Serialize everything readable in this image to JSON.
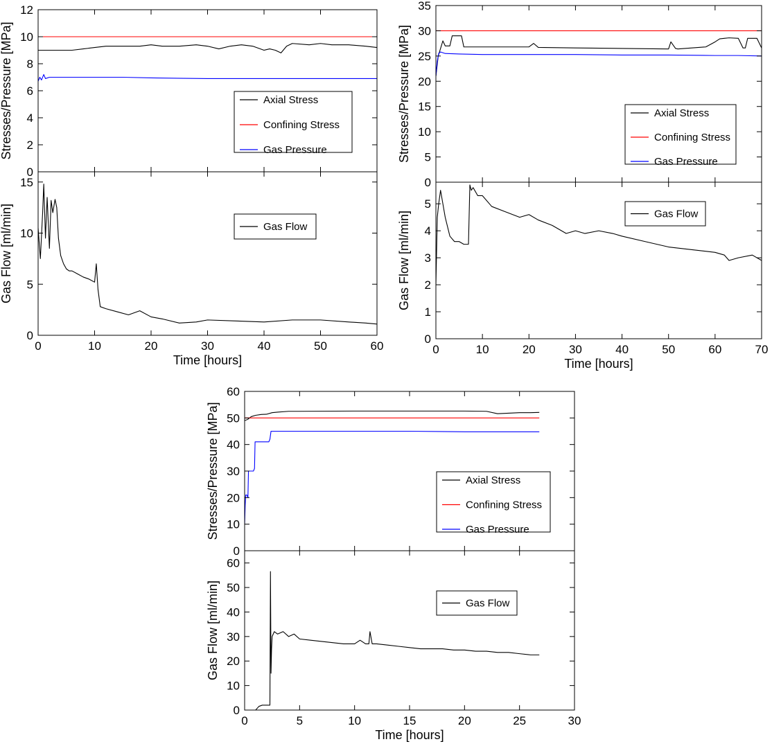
{
  "chart_data": [
    {
      "type": "line",
      "panel": "top-left-upper",
      "xlim": [
        0,
        60
      ],
      "ylim": [
        0,
        12
      ],
      "xticks": [
        0,
        10,
        20,
        30,
        40,
        50,
        60
      ],
      "yticks": [
        0,
        2,
        4,
        6,
        8,
        10,
        12
      ],
      "xlabel": "",
      "ylabel": "Stresses/Pressure [MPa]",
      "legend": "center-right",
      "series": [
        {
          "name": "Axial Stress",
          "color": "#000000",
          "x": [
            0,
            2,
            4,
            6,
            8,
            10,
            12,
            15,
            18,
            20,
            22,
            25,
            28,
            30,
            32,
            34,
            36,
            38,
            40,
            41,
            42,
            43,
            44,
            45,
            48,
            50,
            52,
            55,
            58,
            60
          ],
          "y": [
            9.0,
            9.0,
            9.0,
            9.0,
            9.1,
            9.2,
            9.3,
            9.3,
            9.3,
            9.4,
            9.3,
            9.3,
            9.4,
            9.3,
            9.1,
            9.3,
            9.4,
            9.3,
            9.0,
            9.1,
            9.0,
            8.8,
            9.3,
            9.5,
            9.4,
            9.5,
            9.4,
            9.4,
            9.3,
            9.2
          ]
        },
        {
          "name": "Confining Stress",
          "color": "#ff0000",
          "x": [
            0,
            60
          ],
          "y": [
            10.0,
            10.0
          ]
        },
        {
          "name": "Gas Pressure",
          "color": "#0000ff",
          "x": [
            0,
            0.3,
            0.6,
            1,
            1.3,
            2,
            3,
            5,
            10,
            15,
            20,
            30,
            40,
            50,
            60
          ],
          "y": [
            6.7,
            7.0,
            6.8,
            7.2,
            6.9,
            7.0,
            7.0,
            7.0,
            7.0,
            7.0,
            6.95,
            6.9,
            6.9,
            6.9,
            6.9
          ]
        }
      ]
    },
    {
      "type": "line",
      "panel": "top-left-lower",
      "xlim": [
        0,
        60
      ],
      "ylim": [
        0,
        16
      ],
      "xticks": [
        0,
        10,
        20,
        30,
        40,
        50,
        60
      ],
      "yticks": [
        0,
        5,
        10,
        15
      ],
      "xlabel": "Time [hours]",
      "ylabel": "Gas Flow [ml/min]",
      "legend": "upper-right",
      "series": [
        {
          "name": "Gas Flow",
          "color": "#000000",
          "x": [
            0,
            0.4,
            0.8,
            1.0,
            1.3,
            1.6,
            2.0,
            2.3,
            2.6,
            3.0,
            3.3,
            3.6,
            4.0,
            4.5,
            5.0,
            5.5,
            6,
            7,
            8,
            9,
            10,
            10.3,
            10.6,
            11,
            12,
            14,
            16,
            18,
            20,
            22,
            25,
            28,
            30,
            35,
            40,
            45,
            50,
            55,
            58,
            60
          ],
          "y": [
            10.5,
            7.5,
            12,
            14.8,
            9.5,
            13.5,
            8.5,
            13.2,
            12,
            13.3,
            12.5,
            9.5,
            7.8,
            7.0,
            6.5,
            6.3,
            6.3,
            6.0,
            5.7,
            5.5,
            5.2,
            7.0,
            4.5,
            2.8,
            2.6,
            2.3,
            2.0,
            2.4,
            1.8,
            1.6,
            1.2,
            1.3,
            1.5,
            1.4,
            1.3,
            1.5,
            1.5,
            1.3,
            1.2,
            1.1
          ]
        }
      ]
    },
    {
      "type": "line",
      "panel": "top-right-upper",
      "xlim": [
        0,
        70
      ],
      "ylim": [
        0,
        35
      ],
      "xticks": [
        0,
        10,
        20,
        30,
        40,
        50,
        60,
        70
      ],
      "yticks": [
        0,
        5,
        10,
        15,
        20,
        25,
        30,
        35
      ],
      "xlabel": "",
      "ylabel": "Stresses/Pressure [MPa]",
      "legend": "center-right",
      "series": [
        {
          "name": "Axial Stress",
          "color": "#000000",
          "x": [
            0,
            0.5,
            1,
            1.5,
            2,
            3,
            3.5,
            5.5,
            6,
            10,
            20,
            21,
            22,
            30,
            40,
            50,
            50.5,
            51.5,
            52,
            55,
            58,
            60,
            61,
            62,
            63,
            65,
            66,
            66.5,
            67,
            68,
            69,
            70
          ],
          "y": [
            21,
            25,
            26.5,
            28,
            27,
            27,
            29,
            29,
            26.8,
            26.8,
            26.8,
            27.5,
            26.7,
            26.6,
            26.5,
            26.4,
            27.8,
            26.5,
            26.4,
            26.6,
            26.8,
            27.8,
            28.4,
            28.5,
            28.6,
            28.5,
            26.6,
            26.6,
            28.5,
            28.5,
            28.5,
            26.6
          ]
        },
        {
          "name": "Confining Stress",
          "color": "#ff0000",
          "x": [
            0,
            70
          ],
          "y": [
            30.0,
            30.0
          ]
        },
        {
          "name": "Gas Pressure",
          "color": "#0000ff",
          "x": [
            0,
            0.3,
            0.6,
            1,
            2,
            5,
            10,
            20,
            30,
            40,
            50,
            60,
            65,
            70
          ],
          "y": [
            21,
            24,
            25.5,
            25.8,
            25.5,
            25.4,
            25.3,
            25.3,
            25.3,
            25.2,
            25.2,
            25.1,
            25.1,
            25.0
          ]
        }
      ]
    },
    {
      "type": "line",
      "panel": "top-right-lower",
      "xlim": [
        0,
        70
      ],
      "ylim": [
        0,
        5.8
      ],
      "xticks": [
        0,
        10,
        20,
        30,
        40,
        50,
        60,
        70
      ],
      "yticks": [
        0,
        1,
        2,
        3,
        4,
        5
      ],
      "xlabel": "Time [hours]",
      "ylabel": "Gas Flow [ml/min]",
      "legend": "upper-right",
      "series": [
        {
          "name": "Gas Flow",
          "color": "#000000",
          "x": [
            0,
            0.3,
            0.6,
            1,
            1.5,
            2,
            3,
            4,
            5,
            6,
            7,
            7.3,
            7.6,
            8,
            9,
            10,
            12,
            15,
            18,
            20,
            22,
            25,
            28,
            30,
            32,
            35,
            38,
            40,
            45,
            50,
            55,
            60,
            62,
            63,
            65,
            68,
            70
          ],
          "y": [
            2.0,
            4.5,
            5.0,
            5.5,
            5.0,
            4.5,
            3.8,
            3.6,
            3.6,
            3.5,
            3.5,
            5.7,
            5.5,
            5.6,
            5.3,
            5.3,
            4.9,
            4.7,
            4.5,
            4.6,
            4.4,
            4.2,
            3.9,
            4.0,
            3.9,
            4.0,
            3.9,
            3.8,
            3.6,
            3.4,
            3.3,
            3.2,
            3.1,
            2.9,
            3.0,
            3.1,
            2.9
          ]
        }
      ]
    },
    {
      "type": "line",
      "panel": "bottom-upper",
      "xlim": [
        0,
        30
      ],
      "ylim": [
        0,
        60
      ],
      "xticks": [
        0,
        5,
        10,
        15,
        20,
        25,
        30
      ],
      "yticks": [
        0,
        10,
        20,
        30,
        40,
        50,
        60
      ],
      "xlabel": "",
      "ylabel": "Stresses/Pressure [MPa]",
      "legend": "center-right",
      "series": [
        {
          "name": "Axial Stress",
          "color": "#000000",
          "x": [
            0,
            0.3,
            0.6,
            1,
            1.5,
            2,
            2.5,
            3,
            4,
            5,
            10,
            15,
            20,
            22,
            23,
            24,
            25,
            26,
            26.8
          ],
          "y": [
            49,
            49.5,
            50.5,
            51,
            51.3,
            51.4,
            52,
            52.2,
            52.5,
            52.5,
            52.6,
            52.6,
            52.6,
            52.5,
            51.6,
            51.8,
            52,
            52,
            52.1
          ]
        },
        {
          "name": "Confining Stress",
          "color": "#ff0000",
          "x": [
            0,
            26.8
          ],
          "y": [
            50,
            50
          ]
        },
        {
          "name": "Gas Pressure",
          "color": "#0000ff",
          "x": [
            0,
            0.05,
            0.1,
            0.2,
            0.3,
            0.35,
            0.4,
            0.8,
            0.9,
            0.95,
            1.0,
            2.2,
            2.3,
            2.4,
            2.5,
            5,
            10,
            15,
            20,
            26.8
          ],
          "y": [
            10,
            17,
            21,
            21,
            20,
            30,
            30,
            30,
            31,
            41,
            41,
            41,
            42,
            45,
            45,
            45,
            45,
            45,
            44.8,
            44.8
          ]
        }
      ]
    },
    {
      "type": "line",
      "panel": "bottom-lower",
      "xlim": [
        0,
        30
      ],
      "ylim": [
        0,
        65
      ],
      "xticks": [
        0,
        5,
        10,
        15,
        20,
        25,
        30
      ],
      "yticks": [
        0,
        10,
        20,
        30,
        40,
        50,
        60
      ],
      "xlabel": "Time [hours]",
      "ylabel": "Gas Flow [ml/min]",
      "legend": "upper-right",
      "series": [
        {
          "name": "Gas Flow",
          "color": "#000000",
          "x": [
            0,
            1.0,
            1.3,
            1.6,
            2.0,
            2.3,
            2.35,
            2.4,
            2.45,
            2.5,
            2.7,
            3.0,
            3.5,
            4.0,
            4.5,
            5,
            6,
            7,
            8,
            9,
            10,
            10.5,
            11,
            11.3,
            11.4,
            11.6,
            12,
            13,
            14,
            15,
            16,
            17,
            18,
            19,
            20,
            21,
            22,
            23,
            24,
            25,
            26,
            26.8
          ],
          "y": [
            0,
            0,
            1.5,
            2.0,
            2.0,
            2.0,
            56.5,
            15,
            25,
            30,
            32,
            31,
            32,
            30,
            31,
            29,
            28.5,
            28,
            27.5,
            27,
            27,
            28.5,
            27,
            27,
            32,
            27,
            27,
            26.5,
            26,
            25.5,
            25,
            25,
            25,
            24.5,
            24.5,
            24,
            24,
            23.5,
            23.5,
            23,
            22.5,
            22.5
          ]
        }
      ]
    }
  ]
}
